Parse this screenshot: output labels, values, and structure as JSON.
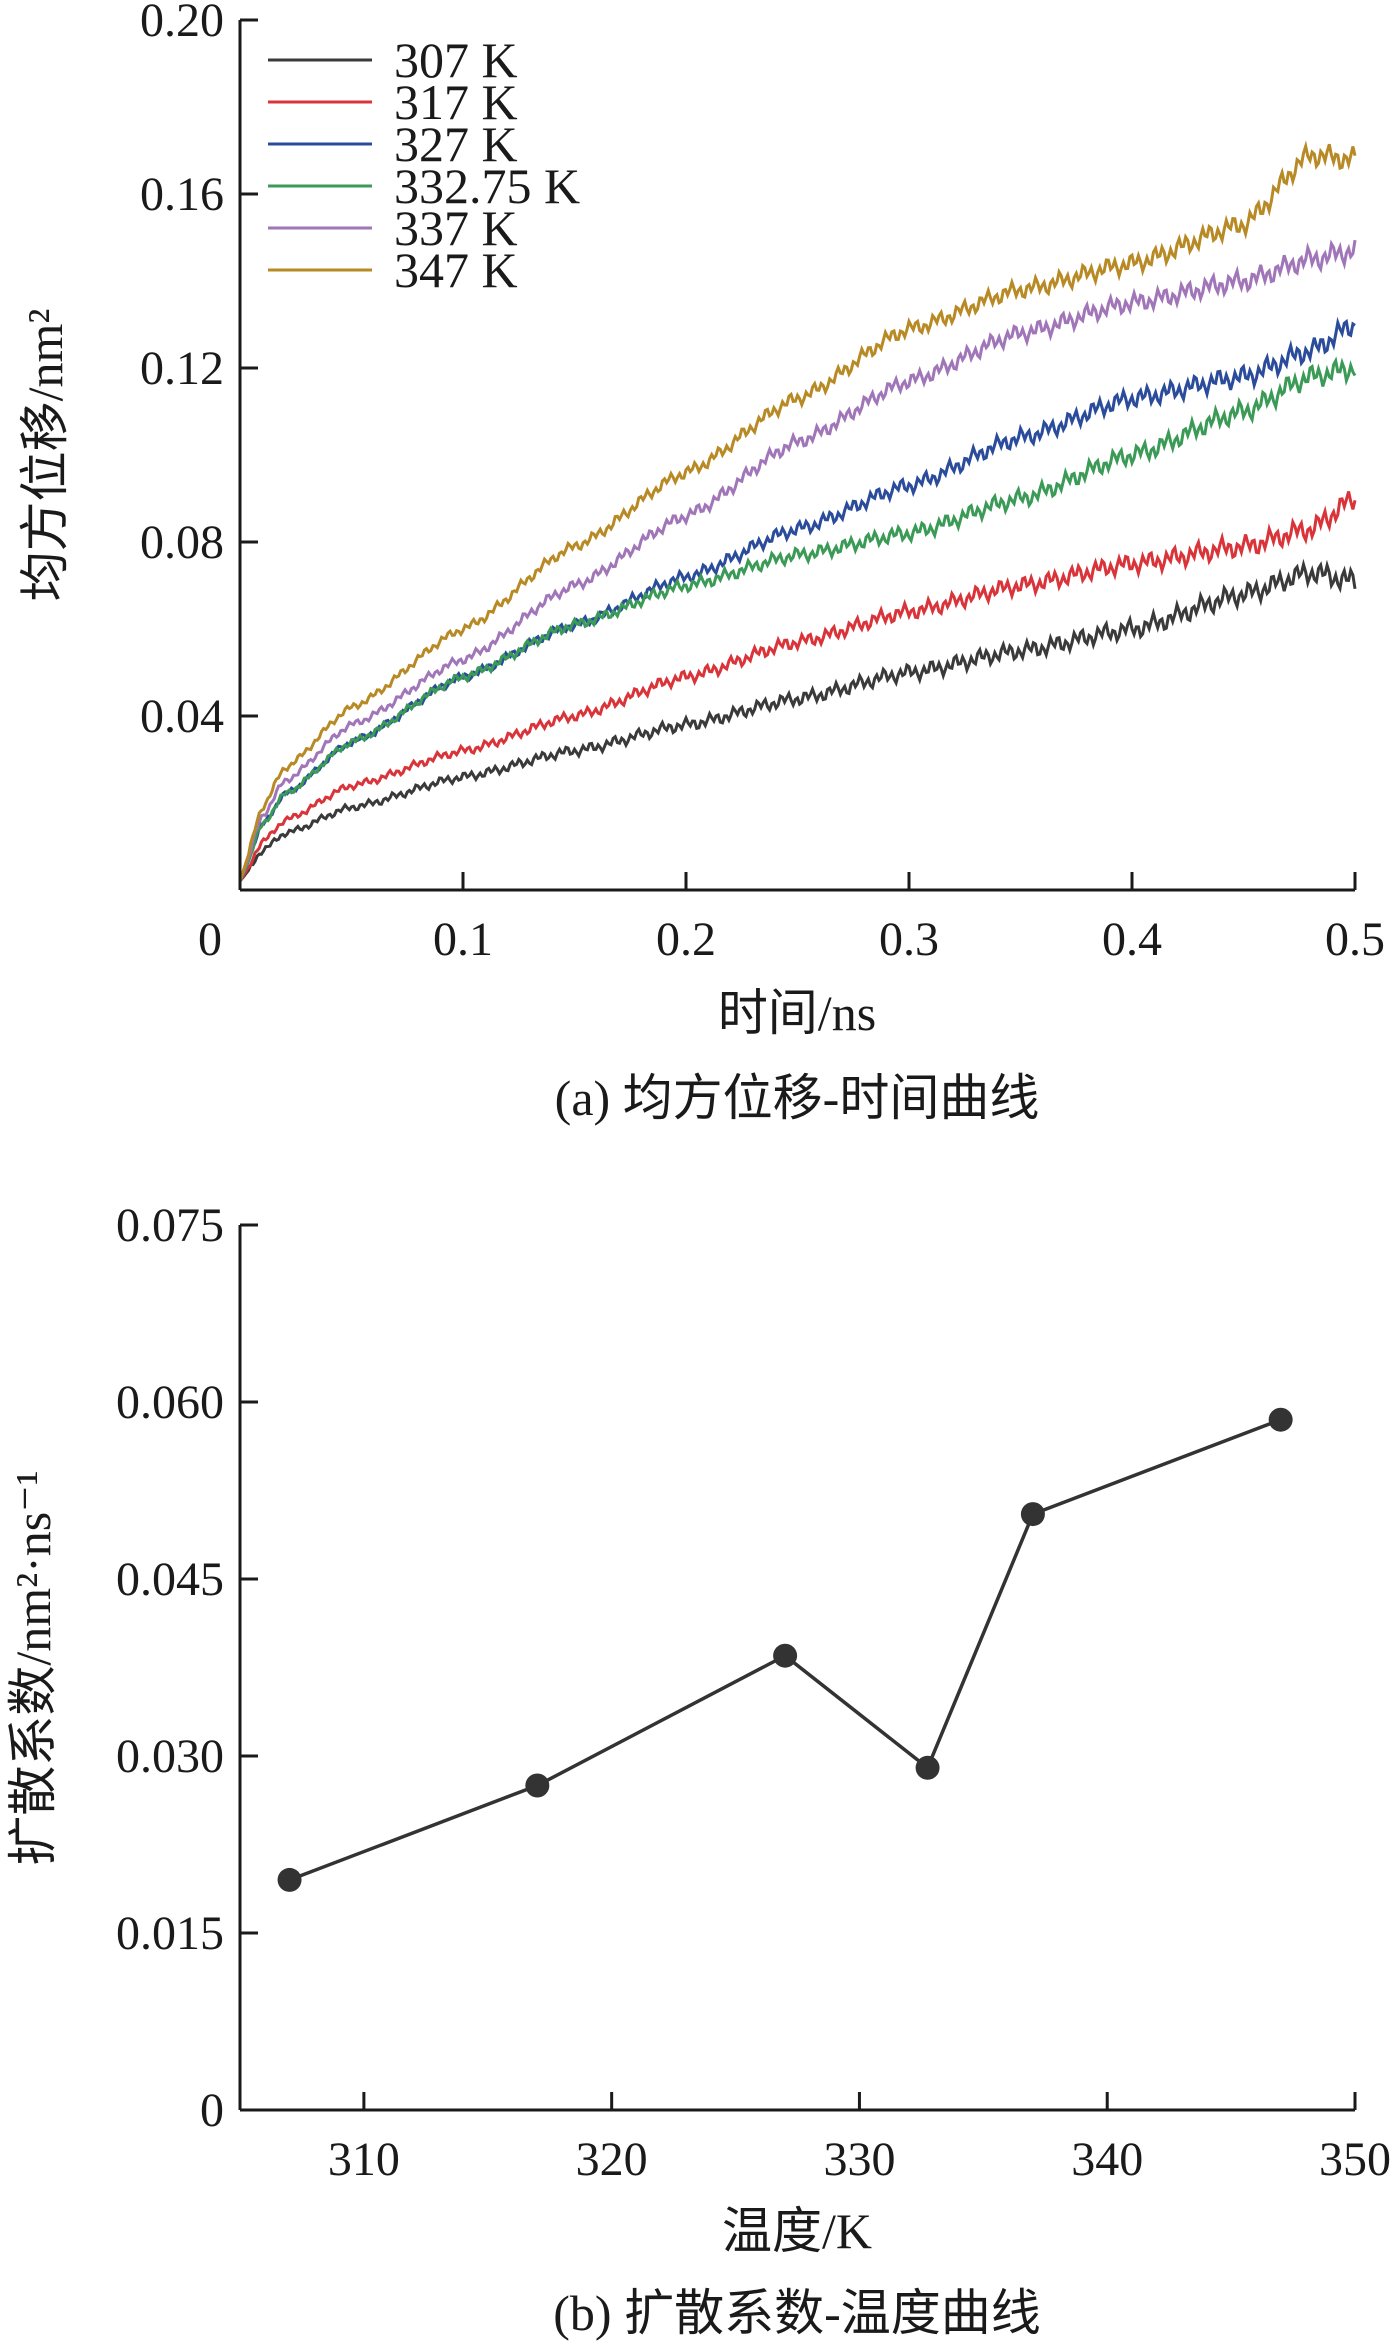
{
  "chart_data": [
    {
      "type": "line",
      "caption": "(a) 均方位移-时间曲线",
      "xlabel": "时间/ns",
      "ylabel": "均方位移/nm²",
      "xlim": [
        0,
        0.5
      ],
      "ylim": [
        0,
        0.2
      ],
      "xticks": [
        "0",
        "0.1",
        "0.2",
        "0.3",
        "0.4",
        "0.5"
      ],
      "yticks": [
        "0.04",
        "0.08",
        "0.12",
        "0.16",
        "0.20"
      ],
      "legend_position": "top-left",
      "grid": false,
      "x": [
        0,
        0.01,
        0.02,
        0.05,
        0.1,
        0.15,
        0.2,
        0.25,
        0.3,
        0.35,
        0.4,
        0.45,
        0.48,
        0.5
      ],
      "series": [
        {
          "name": "307 K",
          "color": "#3a3a3a",
          "values": [
            0.002,
            0.009,
            0.013,
            0.019,
            0.026,
            0.032,
            0.038,
            0.044,
            0.05,
            0.055,
            0.06,
            0.068,
            0.073,
            0.071
          ]
        },
        {
          "name": "317 K",
          "color": "#d9343a",
          "values": [
            0.002,
            0.011,
            0.016,
            0.024,
            0.032,
            0.04,
            0.049,
            0.057,
            0.064,
            0.07,
            0.075,
            0.079,
            0.083,
            0.09
          ]
        },
        {
          "name": "327 K",
          "color": "#2b4c9b",
          "values": [
            0.002,
            0.015,
            0.022,
            0.034,
            0.049,
            0.061,
            0.072,
            0.083,
            0.093,
            0.104,
            0.113,
            0.118,
            0.124,
            0.13
          ]
        },
        {
          "name": "332.75 K",
          "color": "#3a9a56",
          "values": [
            0.002,
            0.015,
            0.022,
            0.034,
            0.049,
            0.061,
            0.07,
            0.077,
            0.082,
            0.09,
            0.1,
            0.11,
            0.118,
            0.12
          ]
        },
        {
          "name": "337 K",
          "color": "#a176b8",
          "values": [
            0.002,
            0.017,
            0.025,
            0.038,
            0.053,
            0.07,
            0.086,
            0.103,
            0.117,
            0.128,
            0.135,
            0.14,
            0.145,
            0.147
          ]
        },
        {
          "name": "347 K",
          "color": "#b88a25",
          "values": [
            0.002,
            0.019,
            0.028,
            0.042,
            0.06,
            0.079,
            0.096,
            0.113,
            0.129,
            0.138,
            0.144,
            0.153,
            0.169,
            0.168
          ]
        }
      ]
    },
    {
      "type": "line",
      "caption": "(b) 扩散系数-温度曲线",
      "xlabel": "温度/K",
      "ylabel": "扩散系数/nm²·ns⁻¹",
      "xlim": [
        305,
        350
      ],
      "ylim": [
        0,
        0.075
      ],
      "xticks": [
        "310",
        "320",
        "330",
        "340",
        "350"
      ],
      "yticks": [
        "0",
        "0.015",
        "0.030",
        "0.045",
        "0.060",
        "0.075"
      ],
      "grid": false,
      "markers": true,
      "color": "#333333",
      "x": [
        307,
        317,
        327,
        332.75,
        337,
        347
      ],
      "values": [
        0.0195,
        0.0275,
        0.0385,
        0.029,
        0.0505,
        0.0585
      ]
    }
  ]
}
